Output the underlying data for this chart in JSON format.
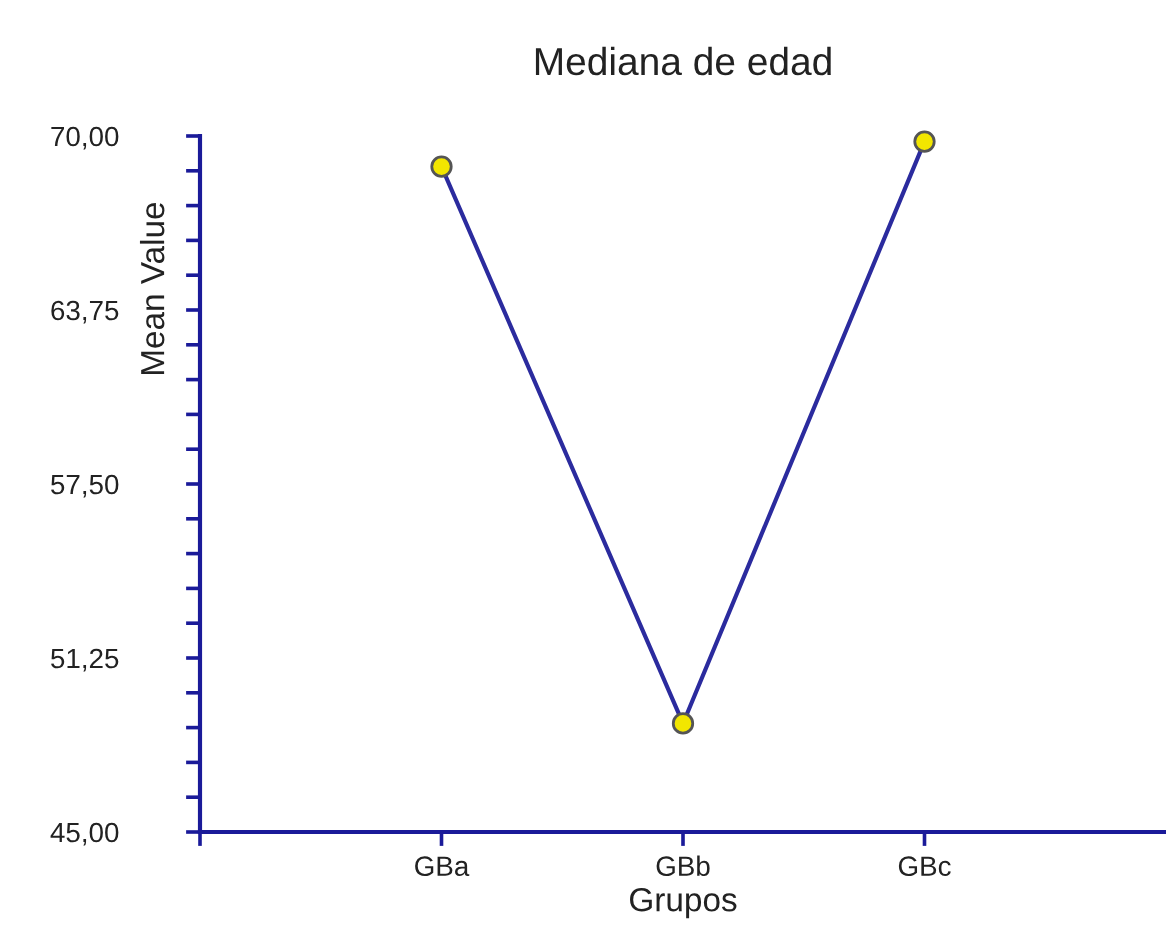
{
  "chart_data": {
    "type": "line",
    "title": "Mediana de edad",
    "xlabel": "Grupos",
    "ylabel": "Mean Value",
    "categories": [
      "GBa",
      "GBb",
      "GBc"
    ],
    "series": [
      {
        "color": "#2b2b9e",
        "values": [
          68.9,
          48.9,
          69.8
        ]
      }
    ],
    "marker": "circle",
    "line_style": "solid",
    "grid": false,
    "legend": false,
    "ylim": [
      45,
      70
    ],
    "yticks": [
      {
        "value": 45,
        "label": "45,00"
      },
      {
        "value": 46.25,
        "label": null
      },
      {
        "value": 47.5,
        "label": null
      },
      {
        "value": 48.75,
        "label": null
      },
      {
        "value": 50,
        "label": null
      },
      {
        "value": 51.25,
        "label": "51,25"
      },
      {
        "value": 52.5,
        "label": null
      },
      {
        "value": 53.75,
        "label": null
      },
      {
        "value": 55,
        "label": null
      },
      {
        "value": 56.25,
        "label": null
      },
      {
        "value": 57.5,
        "label": "57,50"
      },
      {
        "value": 58.75,
        "label": null
      },
      {
        "value": 60,
        "label": null
      },
      {
        "value": 61.25,
        "label": null
      },
      {
        "value": 62.5,
        "label": null
      },
      {
        "value": 63.75,
        "label": "63,75"
      },
      {
        "value": 65,
        "label": null
      },
      {
        "value": 66.25,
        "label": null
      },
      {
        "value": 67.5,
        "label": null
      },
      {
        "value": 68.75,
        "label": null
      },
      {
        "value": 70,
        "label": "70,00"
      }
    ]
  }
}
